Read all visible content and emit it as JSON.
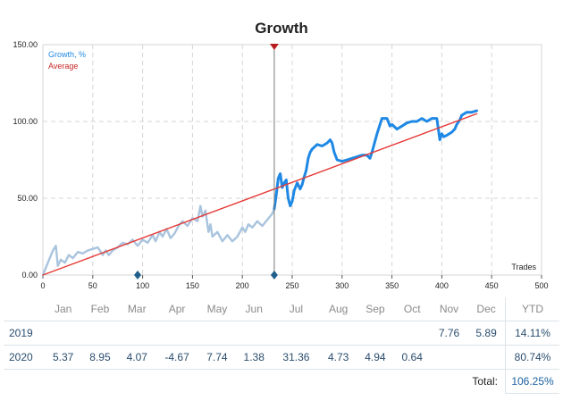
{
  "chart_data": {
    "type": "line",
    "title": "Growth",
    "xlabel": "Trades",
    "ylabel": "",
    "xlim": [
      0,
      500
    ],
    "ylim": [
      0,
      150
    ],
    "x_ticks": [
      "0",
      "50",
      "100",
      "150",
      "200",
      "250",
      "300",
      "350",
      "400",
      "450",
      "500"
    ],
    "y_ticks": [
      "0.00",
      "50.00",
      "100.00",
      "150.00"
    ],
    "legend": [
      "Growth, %",
      "Average"
    ],
    "legend_position": "top-left",
    "series": [
      {
        "name": "Growth, %",
        "segment": "earlier",
        "color": "#a9c4de",
        "x": [
          0,
          5,
          10,
          13,
          15,
          18,
          22,
          26,
          30,
          35,
          40,
          45,
          50,
          55,
          60,
          63,
          66,
          70,
          75,
          80,
          85,
          90,
          95,
          100,
          105,
          110,
          113,
          117,
          120,
          124,
          128,
          132,
          136,
          140,
          145,
          150,
          155,
          158,
          160,
          163,
          166,
          168,
          170,
          175,
          180,
          185,
          190,
          195,
          200,
          203,
          206,
          210,
          215,
          220,
          225,
          230,
          232
        ],
        "y": [
          0,
          8,
          16,
          19,
          6,
          10,
          8,
          13,
          11,
          15,
          14,
          16,
          17,
          18,
          13,
          16,
          13,
          16,
          18,
          21,
          20,
          23,
          19,
          23,
          21,
          26,
          22,
          28,
          25,
          30,
          24,
          27,
          32,
          35,
          32,
          37,
          35,
          45,
          38,
          42,
          28,
          33,
          25,
          28,
          22,
          26,
          22,
          25,
          31,
          28,
          33,
          31,
          35,
          32,
          36,
          40,
          43
        ]
      },
      {
        "name": "Growth, %",
        "segment": "recent",
        "color": "#1e88e5",
        "x": [
          232,
          234,
          236,
          238,
          240,
          242,
          244,
          246,
          248,
          250,
          252,
          255,
          258,
          260,
          262,
          264,
          266,
          268,
          270,
          275,
          280,
          285,
          288,
          290,
          292,
          295,
          300,
          305,
          310,
          315,
          320,
          325,
          328,
          330,
          335,
          340,
          345,
          348,
          350,
          355,
          360,
          365,
          370,
          375,
          380,
          385,
          390,
          395,
          398,
          400,
          402,
          405,
          410,
          413,
          415,
          418,
          420,
          425,
          430,
          435
        ],
        "y": [
          43,
          52,
          63,
          66,
          57,
          60,
          62,
          50,
          45,
          48,
          55,
          60,
          56,
          59,
          64,
          68,
          76,
          80,
          82,
          85,
          84,
          86,
          88,
          86,
          80,
          75,
          74,
          75,
          76,
          77,
          78,
          78,
          76,
          80,
          92,
          102,
          102,
          97,
          98,
          95,
          97,
          99,
          100,
          100,
          102,
          100,
          102,
          102,
          88,
          92,
          90,
          91,
          93,
          95,
          98,
          101,
          104,
          106,
          106,
          107
        ]
      },
      {
        "name": "Average",
        "color": "#e53935",
        "x": [
          0,
          435
        ],
        "y": [
          0,
          105
        ]
      }
    ],
    "markers": {
      "vertical_line_x": 232,
      "top_marker_x": 232,
      "bottom_markers_x": [
        95,
        232
      ]
    }
  },
  "table": {
    "months": [
      "Jan",
      "Feb",
      "Mar",
      "Apr",
      "May",
      "Jun",
      "Jul",
      "Aug",
      "Sep",
      "Oct",
      "Nov",
      "Dec"
    ],
    "ytd_label": "YTD",
    "rows": [
      {
        "year": "2019",
        "values": [
          "",
          "",
          "",
          "",
          "",
          "",
          "",
          "",
          "",
          "",
          "7.76",
          "5.89"
        ],
        "ytd": "14.11%"
      },
      {
        "year": "2020",
        "values": [
          "5.37",
          "8.95",
          "4.07",
          "-4.67",
          "7.74",
          "1.38",
          "31.36",
          "4.73",
          "4.94",
          "0.64",
          "",
          ""
        ],
        "ytd": "80.74%"
      }
    ],
    "total_label": "Total:",
    "total_value": "106.25%"
  }
}
